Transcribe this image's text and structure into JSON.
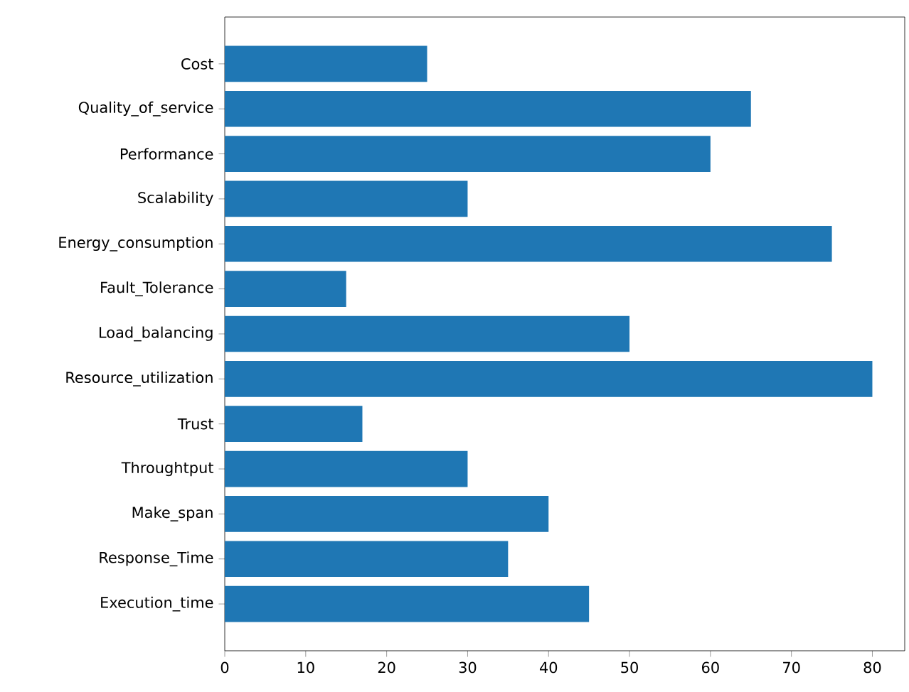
{
  "chart_data": {
    "type": "bar",
    "orientation": "horizontal",
    "categories": [
      "Cost",
      "Quality_of_service",
      "Performance",
      "Scalability",
      "Energy_consumption",
      "Fault_Tolerance",
      "Load_balancing",
      "Resource_utilization",
      "Trust",
      "Throughtput",
      "Make_span",
      "Response_Time",
      "Execution_time"
    ],
    "values": [
      25,
      65,
      60,
      30,
      75,
      15,
      50,
      80,
      17,
      30,
      40,
      35,
      45
    ],
    "color": "#1f77b4",
    "xlim": [
      0,
      84
    ],
    "xticks": [
      0,
      10,
      20,
      30,
      40,
      50,
      60,
      70,
      80
    ]
  }
}
